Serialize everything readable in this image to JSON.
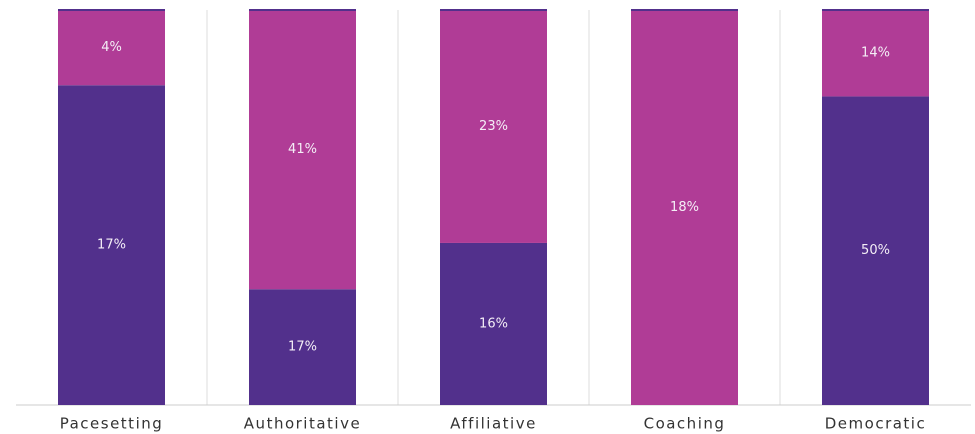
{
  "chart_data": {
    "type": "bar",
    "stacked": "percent",
    "categories": [
      "Pacesetting",
      "Authoritative",
      "Affiliative",
      "Coaching",
      "Democratic"
    ],
    "series": [
      {
        "color": "#52308c",
        "values": [
          17,
          17,
          16,
          null,
          50
        ],
        "value_labels": [
          "17%",
          "17%",
          "16%",
          null,
          "50%"
        ]
      },
      {
        "color": "#b03c96",
        "values": [
          4,
          41,
          23,
          18,
          14
        ],
        "value_labels": [
          "4%",
          "41%",
          "23%",
          "18%",
          "14%"
        ]
      }
    ]
  }
}
